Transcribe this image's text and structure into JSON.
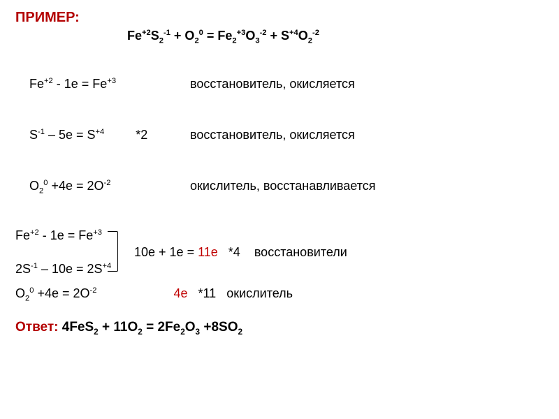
{
  "title": "ПРИМЕР:",
  "main_equation": {
    "lhs_1": {
      "base": "Fe",
      "sup": "+2"
    },
    "lhs_2": {
      "base": "S",
      "sub": "2",
      "sup": "-1"
    },
    "lhs_3": {
      "base": "O",
      "sub": "2",
      "sup": "0"
    },
    "rhs_1": {
      "base": "Fe",
      "sub": "2",
      "sup": "+3"
    },
    "rhs_2": {
      "base": "O",
      "sub": "3",
      "sup": "-2"
    },
    "rhs_3": {
      "base": "S",
      "sup": "+4"
    },
    "rhs_4": {
      "base": "O",
      "sub": "2",
      "sup": "-2"
    }
  },
  "half_reactions_1": [
    {
      "left": "Fe⁺² - 1e = Fe⁺³",
      "mult": "",
      "desc": "восстановитель, окисляется"
    },
    {
      "left": "S⁻¹ – 5e = S⁺⁴",
      "mult": "*2",
      "desc": "восстановитель, окисляется"
    },
    {
      "left": "O₂⁰ +4e = 2O⁻²",
      "mult": "",
      "desc": "окислитель, восстанавливается"
    }
  ],
  "combined": {
    "line1": "Fe⁺² - 1e = Fe⁺³",
    "middle_sum": "10e + 1e = ",
    "middle_red": "11e",
    "middle_mult": "   *4    восстановители",
    "line3": "2S⁻¹ – 10e = 2S⁺⁴",
    "ox_left": "O₂⁰ +4e = 2O⁻²",
    "ox_red": "4e",
    "ox_tail": "   *11   окислитель"
  },
  "answer": {
    "label": "Ответ:",
    "eq": "    4FeS₂ + 11O₂ = 2Fe₂O₃ +8SO₂"
  },
  "colors": {
    "title": "#b30000",
    "accent": "#c00000",
    "text": "#000000",
    "bg": "#ffffff"
  },
  "font": {
    "family": "Arial",
    "base_size_pt": 14,
    "title_size_pt": 15
  }
}
